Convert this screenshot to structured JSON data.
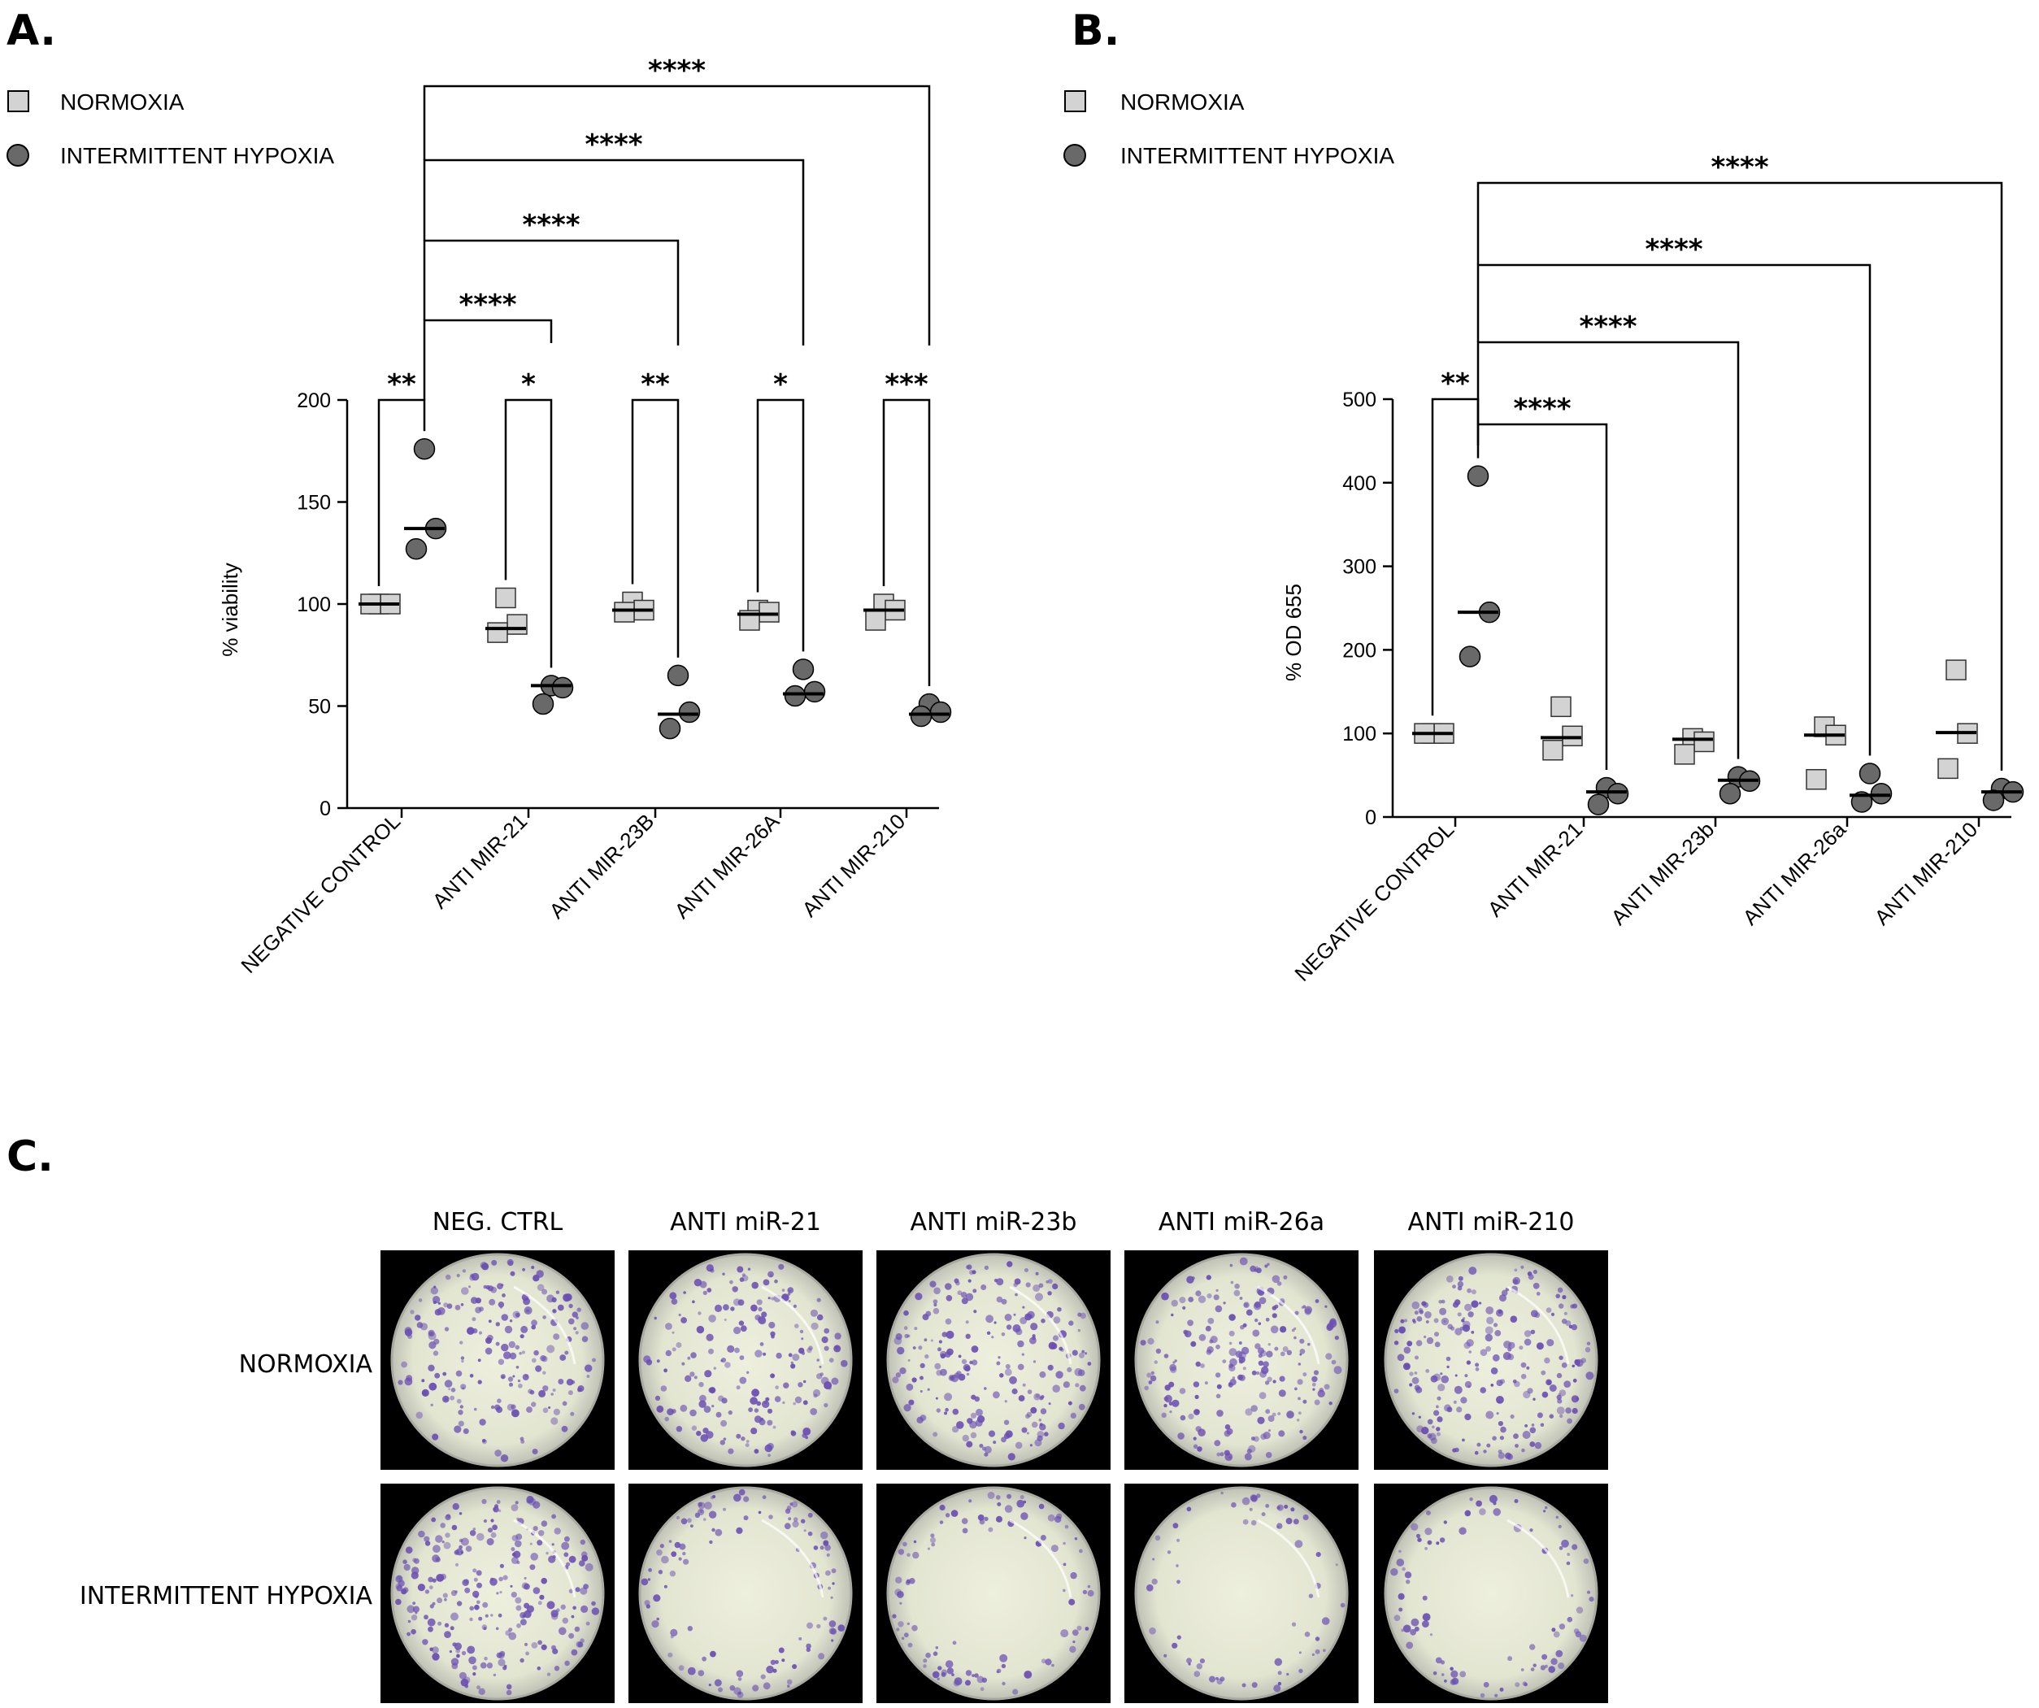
{
  "legend": {
    "normoxia": "NORMOXIA",
    "hypoxia": "INTERMITTENT HYPOXIA"
  },
  "colors": {
    "normoxia_fill": "#d3d3d3",
    "hypoxia_fill": "#696969",
    "plate_stain": "#6a4fb3",
    "plate_background": "#e9ecd8"
  },
  "chart_data": [
    {
      "panel": "A.",
      "type": "scatter",
      "ylabel": "% viability",
      "ylim": [
        0,
        200
      ],
      "yticks": [
        0,
        50,
        100,
        150,
        200
      ],
      "categories": [
        "NEGATIVE CONTROL",
        "ANTI MIR-21",
        "ANTI MIR-23B",
        "ANTI MIR-26A",
        "ANTI MIR-210"
      ],
      "series": [
        {
          "name": "NORMOXIA",
          "marker": "square",
          "points": [
            [
              100,
              100,
              100
            ],
            [
              103,
              90,
              86
            ],
            [
              101,
              97,
              96
            ],
            [
              97,
              96,
              92
            ],
            [
              100,
              97,
              92
            ]
          ],
          "median": [
            100,
            88,
            97,
            95,
            97
          ]
        },
        {
          "name": "INTERMITTENT HYPOXIA",
          "marker": "circle",
          "points": [
            [
              176,
              137,
              127
            ],
            [
              60,
              59,
              51
            ],
            [
              65,
              47,
              39
            ],
            [
              68,
              57,
              55
            ],
            [
              51,
              47,
              45
            ]
          ],
          "median": [
            137,
            60,
            46,
            56,
            46
          ]
        }
      ],
      "significance": [
        {
          "from": [
            0,
            0
          ],
          "to": [
            0,
            1
          ],
          "label": "**"
        },
        {
          "from": [
            1,
            0
          ],
          "to": [
            1,
            1
          ],
          "label": "*"
        },
        {
          "from": [
            2,
            0
          ],
          "to": [
            2,
            1
          ],
          "label": "**"
        },
        {
          "from": [
            3,
            0
          ],
          "to": [
            3,
            1
          ],
          "label": "*"
        },
        {
          "from": [
            4,
            0
          ],
          "to": [
            4,
            1
          ],
          "label": "***"
        },
        {
          "from": [
            0,
            1
          ],
          "to": [
            1,
            1
          ],
          "label": "****"
        },
        {
          "from": [
            0,
            1
          ],
          "to": [
            2,
            1
          ],
          "label": "****"
        },
        {
          "from": [
            0,
            1
          ],
          "to": [
            3,
            1
          ],
          "label": "****"
        },
        {
          "from": [
            0,
            1
          ],
          "to": [
            4,
            1
          ],
          "label": "****"
        }
      ]
    },
    {
      "panel": "B.",
      "type": "scatter",
      "ylabel": "% OD 655",
      "ylim": [
        0,
        500
      ],
      "yticks": [
        0,
        100,
        200,
        300,
        400,
        500
      ],
      "categories": [
        "NEGATIVE CONTROL",
        "ANTI MIR-21",
        "ANTI MIR-23b",
        "ANTI MIR-26a",
        "ANTI MIR-210"
      ],
      "series": [
        {
          "name": "NORMOXIA",
          "marker": "square",
          "points": [
            [
              100,
              100,
              100
            ],
            [
              132,
              97,
              80
            ],
            [
              94,
              90,
              75
            ],
            [
              108,
              98,
              45
            ],
            [
              176,
              100,
              58
            ]
          ],
          "median": [
            100,
            95,
            93,
            98,
            101
          ]
        },
        {
          "name": "INTERMITTENT HYPOXIA",
          "marker": "circle",
          "points": [
            [
              408,
              245,
              192
            ],
            [
              35,
              28,
              15
            ],
            [
              48,
              43,
              28
            ],
            [
              52,
              28,
              18
            ],
            [
              34,
              30,
              20
            ]
          ],
          "median": [
            245,
            30,
            44,
            26,
            30
          ]
        }
      ],
      "significance": [
        {
          "from": [
            0,
            0
          ],
          "to": [
            0,
            1
          ],
          "label": "**"
        },
        {
          "from": [
            0,
            1
          ],
          "to": [
            1,
            1
          ],
          "label": "****"
        },
        {
          "from": [
            0,
            1
          ],
          "to": [
            2,
            1
          ],
          "label": "****"
        },
        {
          "from": [
            0,
            1
          ],
          "to": [
            3,
            1
          ],
          "label": "****"
        },
        {
          "from": [
            0,
            1
          ],
          "to": [
            4,
            1
          ],
          "label": "****"
        }
      ]
    }
  ],
  "panel_c": {
    "letter": "C.",
    "columns": [
      "NEG. CTRL",
      "ANTI miR-21",
      "ANTI miR-23b",
      "ANTI miR-26a",
      "ANTI miR-210"
    ],
    "rows": [
      "NORMOXIA",
      "INTERMITTENT HYPOXIA"
    ],
    "stain_density": [
      [
        0.8,
        0.75,
        0.85,
        0.85,
        0.9
      ],
      [
        0.95,
        0.45,
        0.4,
        0.25,
        0.35
      ]
    ]
  }
}
